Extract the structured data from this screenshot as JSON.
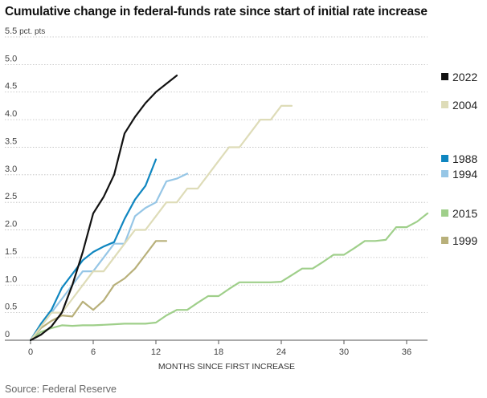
{
  "chart_data": {
    "type": "line",
    "title": "Cumulative change in federal-funds rate since start of initial rate increase",
    "xlabel": "MONTHS SINCE FIRST INCREASE",
    "ylabel": "",
    "y_unit": "pct. pts",
    "xlim": [
      0,
      38
    ],
    "ylim": [
      0,
      5.5
    ],
    "x_ticks": [
      0,
      6,
      12,
      18,
      24,
      30,
      36
    ],
    "y_ticks": [
      0,
      0.5,
      1.0,
      1.5,
      2.0,
      2.5,
      3.0,
      3.5,
      4.0,
      4.5,
      5.0,
      5.5
    ],
    "y_tick_labels": [
      "0",
      "0.5",
      "1.0",
      "1.5",
      "2.0",
      "2.5",
      "3.0",
      "3.5",
      "4.0",
      "4.5",
      "5.0",
      "5.5"
    ],
    "grid": "horizontal",
    "legend_position": "right",
    "source": "Source: Federal Reserve",
    "series": [
      {
        "name": "2022",
        "color": "#111111",
        "x": [
          0,
          1,
          2,
          3,
          4,
          5,
          6,
          7,
          8,
          9,
          10,
          11,
          12,
          13,
          14
        ],
        "values": [
          0,
          0.1,
          0.25,
          0.5,
          1.0,
          1.6,
          2.3,
          2.6,
          3.0,
          3.75,
          4.05,
          4.3,
          4.5,
          4.65,
          4.8
        ]
      },
      {
        "name": "2004",
        "color": "#dedcb8",
        "x": [
          0,
          1,
          2,
          3,
          4,
          5,
          6,
          7,
          8,
          9,
          10,
          11,
          12,
          13,
          14,
          15,
          16,
          17,
          18,
          19,
          20,
          21,
          22,
          23,
          24,
          25
        ],
        "values": [
          0,
          0.25,
          0.5,
          0.5,
          0.75,
          1.0,
          1.25,
          1.25,
          1.5,
          1.75,
          2.0,
          2.0,
          2.25,
          2.5,
          2.5,
          2.75,
          2.75,
          3.0,
          3.25,
          3.5,
          3.5,
          3.75,
          4.0,
          4.0,
          4.25,
          4.25
        ]
      },
      {
        "name": "1988",
        "color": "#0f86c0",
        "x": [
          0,
          1,
          2,
          3,
          4,
          5,
          6,
          7,
          8,
          9,
          10,
          11,
          12
        ],
        "values": [
          0,
          0.3,
          0.55,
          0.95,
          1.2,
          1.45,
          1.6,
          1.7,
          1.78,
          2.2,
          2.55,
          2.8,
          3.28
        ]
      },
      {
        "name": "1994",
        "color": "#96c6e6",
        "x": [
          0,
          1,
          2,
          3,
          4,
          5,
          6,
          7,
          8,
          9,
          10,
          11,
          12,
          13,
          14,
          15
        ],
        "values": [
          0,
          0.25,
          0.5,
          0.75,
          1.0,
          1.25,
          1.25,
          1.5,
          1.75,
          1.75,
          2.25,
          2.4,
          2.5,
          2.88,
          2.93,
          3.02
        ]
      },
      {
        "name": "2015",
        "color": "#9fcf8a",
        "x": [
          0,
          1,
          2,
          3,
          4,
          5,
          6,
          7,
          8,
          9,
          10,
          11,
          12,
          13,
          14,
          15,
          16,
          17,
          18,
          19,
          20,
          21,
          22,
          23,
          24,
          25,
          26,
          27,
          28,
          29,
          30,
          31,
          32,
          33,
          34,
          35,
          36,
          37,
          38
        ],
        "values": [
          0,
          0.15,
          0.22,
          0.27,
          0.26,
          0.27,
          0.27,
          0.28,
          0.29,
          0.3,
          0.3,
          0.3,
          0.32,
          0.45,
          0.55,
          0.55,
          0.68,
          0.8,
          0.8,
          0.93,
          1.05,
          1.05,
          1.05,
          1.05,
          1.06,
          1.18,
          1.3,
          1.3,
          1.42,
          1.55,
          1.55,
          1.67,
          1.8,
          1.8,
          1.82,
          2.05,
          2.05,
          2.15,
          2.3
        ]
      },
      {
        "name": "1999",
        "color": "#b8b07a",
        "x": [
          0,
          1,
          2,
          3,
          4,
          5,
          6,
          7,
          8,
          9,
          10,
          11,
          12,
          13
        ],
        "values": [
          0,
          0.22,
          0.35,
          0.45,
          0.43,
          0.7,
          0.55,
          0.72,
          1.0,
          1.12,
          1.3,
          1.55,
          1.8,
          1.8
        ]
      }
    ]
  }
}
